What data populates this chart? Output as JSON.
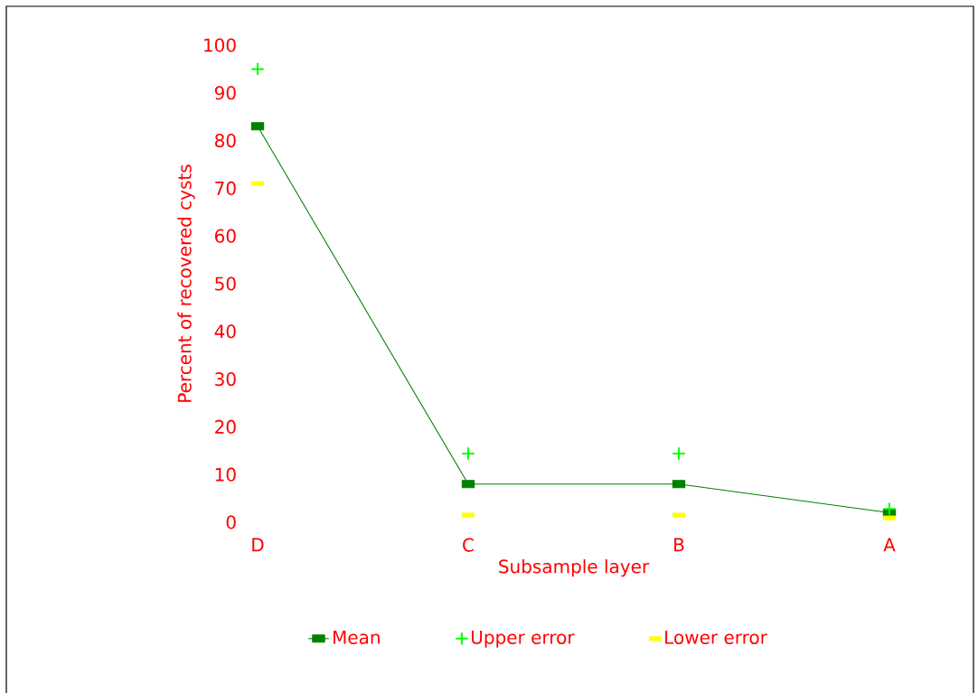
{
  "chart_data": {
    "type": "line",
    "categories": [
      "D",
      "C",
      "B",
      "A"
    ],
    "xlabel": "Subsample layer",
    "ylabel": "Percent of recovered cysts",
    "ylim": [
      0,
      100
    ],
    "yticks": [
      0,
      10,
      20,
      30,
      40,
      50,
      60,
      70,
      80,
      90,
      100
    ],
    "legend": "bottom",
    "series": [
      {
        "name": "Mean",
        "color": "#008000",
        "marker": "square",
        "values": [
          83,
          8,
          8,
          2
        ]
      },
      {
        "name": "Upper error",
        "type": "scatter",
        "color": "#00ff00",
        "marker": "cross",
        "values": [
          95,
          14.4,
          14.4,
          2.8
        ]
      },
      {
        "name": "Lower error",
        "type": "scatter",
        "color": "#ffff00",
        "marker": "square",
        "values": [
          71,
          1.5,
          1.5,
          0.9
        ]
      }
    ]
  }
}
